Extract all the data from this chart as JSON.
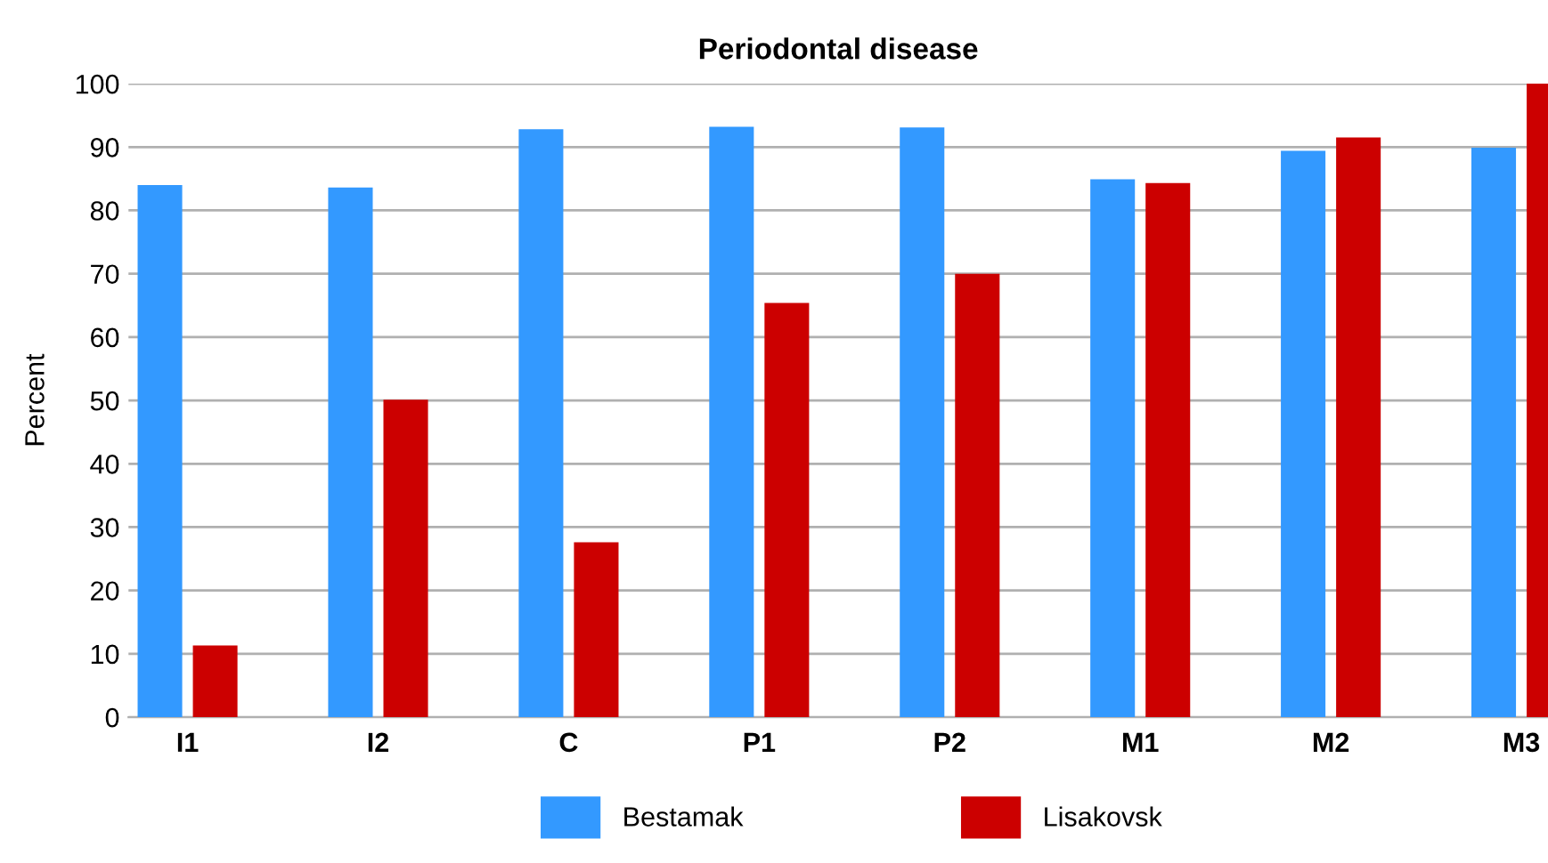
{
  "chart_data": {
    "type": "bar",
    "title": "Periodontal disease",
    "ylabel": "Percent",
    "categories": [
      "I1",
      "I2",
      "C",
      "P1",
      "P2",
      "M1",
      "M2",
      "M3"
    ],
    "series": [
      {
        "name": "Bestamak",
        "color": "#3399ff",
        "values": [
          84.0,
          83.6,
          92.8,
          93.2,
          93.1,
          84.9,
          89.4,
          89.9
        ]
      },
      {
        "name": "Lisakovsk",
        "color": "#cc0000",
        "values": [
          11.3,
          50.1,
          27.6,
          65.4,
          70.0,
          84.3,
          91.5,
          100
        ]
      }
    ],
    "ylim": [
      0,
      100
    ],
    "yticks": [
      0,
      10,
      20,
      30,
      40,
      50,
      60,
      70,
      80,
      90,
      100
    ],
    "grid": "y",
    "legend": "bottom"
  }
}
